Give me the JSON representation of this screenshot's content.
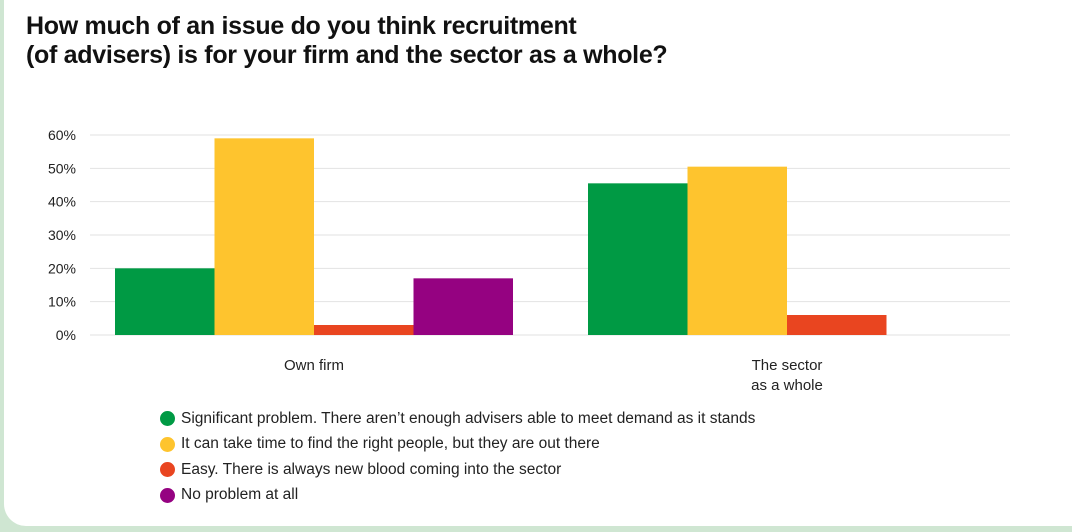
{
  "title_lines": [
    "How much of an issue do you think recruitment",
    "(of advisers) is for your firm and the sector as a whole?"
  ],
  "chart_data": {
    "type": "bar",
    "title": "How much of an issue do you think recruitment (of advisers) is for your firm and the sector as a whole?",
    "categories": [
      "Own firm",
      "The sector\nas a whole"
    ],
    "series": [
      {
        "name": "Significant problem. There aren’t enough advisers able to meet demand as it stands",
        "color": "#009a44",
        "values": [
          20,
          45.5
        ]
      },
      {
        "name": "It can take time to find the right people, but they are out there",
        "color": "#fec42e",
        "values": [
          59,
          50.5
        ]
      },
      {
        "name": "Easy. There is always new blood coming into the sector",
        "color": "#e94520",
        "values": [
          3,
          6
        ]
      },
      {
        "name": "No problem at all",
        "color": "#950281",
        "values": [
          17,
          0
        ]
      }
    ],
    "yticks": [
      "0%",
      "10%",
      "20%",
      "30%",
      "40%",
      "50%",
      "60%"
    ],
    "ylim": [
      0,
      60
    ],
    "grid": true,
    "legend_position": "bottom"
  }
}
